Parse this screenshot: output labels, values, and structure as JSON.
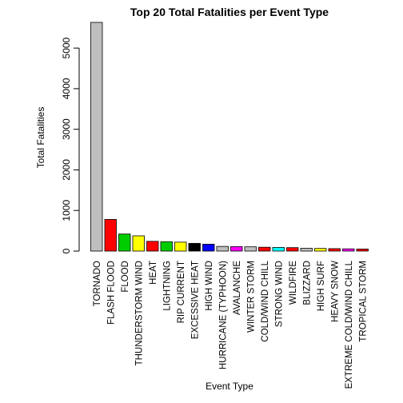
{
  "chart_data": {
    "type": "bar",
    "title": "Top 20 Total Fatalities per Event Type",
    "xlabel": "Event Type",
    "ylabel": "Total Fatalities",
    "ylim": [
      0,
      5633
    ],
    "yticks": [
      0,
      1000,
      2000,
      3000,
      4000,
      5000
    ],
    "grid": false,
    "categories": [
      "TORNADO",
      "FLASH FLOOD",
      "FLOOD",
      "THUNDERSTORM WIND",
      "HEAT",
      "LIGHTNING",
      "RIP CURRENT",
      "EXCESSIVE HEAT",
      "HIGH WIND",
      "HURRICANE (TYPHOON)",
      "AVALANCHE",
      "WINTER STORM",
      "COLD/WIND CHILL",
      "STRONG WIND",
      "WILDFIRE",
      "BLIZZARD",
      "HIGH SURF",
      "HEAVY SNOW",
      "EXTREME COLD/WIND CHILL",
      "TROPICAL STORM"
    ],
    "values": [
      5633,
      780,
      420,
      375,
      240,
      230,
      220,
      190,
      170,
      115,
      110,
      105,
      95,
      90,
      85,
      70,
      65,
      60,
      55,
      50
    ],
    "colors": [
      "#bebebe",
      "#ff0000",
      "#00cd00",
      "#ffff00",
      "#ff0000",
      "#00cd00",
      "#ffff00",
      "#000000",
      "#0000ff",
      "#bebebe",
      "#ff00ff",
      "#bebebe",
      "#ff0000",
      "#00ffff",
      "#ff0000",
      "#bebebe",
      "#ffff00",
      "#ff0000",
      "#ff00ff",
      "#ff0000"
    ]
  }
}
